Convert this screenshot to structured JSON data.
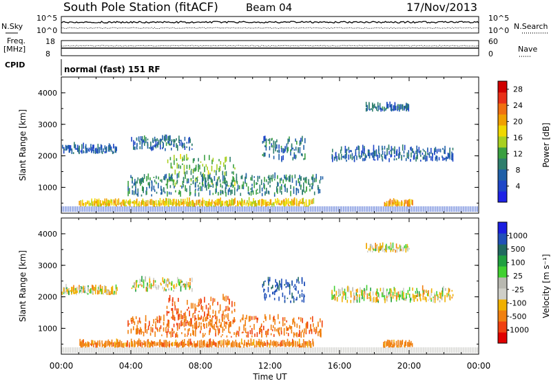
{
  "header": {
    "station": "South Pole Station (fitACF)",
    "beam": "Beam 04",
    "date": "17/Nov/2013"
  },
  "top_panels": {
    "nsky_label": "N.Sky",
    "nsky_ticks": [
      "10^5",
      "10^0"
    ],
    "nsearch_label": "N.Search",
    "nsearch_ticks": [
      "10^5",
      "10^0"
    ],
    "freq_label_1": "Freq.",
    "freq_label_2": "[MHz]",
    "freq_ticks": [
      "18",
      "8"
    ],
    "nave_label": "Nave",
    "nave_ticks": [
      "60",
      "0"
    ],
    "cpid_label": "CPID",
    "cpid_text": "normal (fast) 151 RF"
  },
  "colors": {
    "power_scale": [
      "#1e22e6",
      "#1e46c8",
      "#2060a8",
      "#2e7e6c",
      "#3aa040",
      "#a8d020",
      "#f0d800",
      "#f0a000",
      "#f07010",
      "#e83018",
      "#d00000"
    ],
    "velocity_scale": [
      "#1a1ee0",
      "#2050b8",
      "#206a60",
      "#20a040",
      "#40d030",
      "#b8b8b0",
      "#cfcfc8",
      "#f0b000",
      "#f08010",
      "#f04010",
      "#e00000"
    ]
  },
  "chart_data": [
    {
      "type": "heatmap",
      "name": "power",
      "ylabel": "Slant Range [km]",
      "xlabel": "Time UT",
      "ylim": [
        180,
        4500
      ],
      "yticks": [
        "1000",
        "2000",
        "3000",
        "4000"
      ],
      "xticks": [
        "00:00",
        "04:00",
        "08:00",
        "12:00",
        "16:00",
        "20:00",
        "00:00"
      ],
      "colorbar_label": "Power [dB]",
      "colorbar_ticks": [
        "4",
        "8",
        "12",
        "16",
        "20",
        "24",
        "28"
      ],
      "colorbar_range": [
        0,
        30
      ],
      "echo_regions": [
        {
          "t0": 0.0,
          "t1": 3.2,
          "r0": 2050,
          "r1": 2250,
          "level": 5
        },
        {
          "t0": 4.0,
          "t1": 7.5,
          "r0": 2150,
          "r1": 2500,
          "level": 6
        },
        {
          "t0": 6.0,
          "t1": 10.0,
          "r0": 1000,
          "r1": 1900,
          "level": 12
        },
        {
          "t0": 3.8,
          "t1": 15.0,
          "r0": 700,
          "r1": 1300,
          "level": 8
        },
        {
          "t0": 11.5,
          "t1": 14.0,
          "r0": 1800,
          "r1": 2500,
          "level": 7
        },
        {
          "t0": 15.5,
          "t1": 22.5,
          "r0": 1800,
          "r1": 2200,
          "level": 5
        },
        {
          "t0": 17.5,
          "t1": 20.0,
          "r0": 3400,
          "r1": 3550,
          "level": 6
        },
        {
          "t0": 1.0,
          "t1": 14.5,
          "r0": 380,
          "r1": 500,
          "level": 18
        },
        {
          "t0": 18.5,
          "t1": 20.2,
          "r0": 380,
          "r1": 480,
          "level": 20
        }
      ]
    },
    {
      "type": "heatmap",
      "name": "velocity",
      "ylabel": "Slant Range [km]",
      "xlabel": "Time UT",
      "ylim": [
        180,
        4500
      ],
      "yticks": [
        "1000",
        "2000",
        "3000",
        "4000"
      ],
      "xticks": [
        "00:00",
        "04:00",
        "08:00",
        "12:00",
        "16:00",
        "20:00",
        "00:00"
      ],
      "colorbar_label": "Velocity [m s⁻¹]",
      "colorbar_ticks": [
        "1000",
        "500",
        "100",
        "25",
        "-25",
        "-100",
        "-500",
        "-1000"
      ],
      "colorbar_range": [
        -1000,
        1000
      ],
      "echo_regions": [
        {
          "t0": 0.0,
          "t1": 3.2,
          "r0": 2050,
          "r1": 2250,
          "velocity": 0
        },
        {
          "t0": 4.0,
          "t1": 7.5,
          "r0": 2150,
          "r1": 2500,
          "velocity": 0
        },
        {
          "t0": 6.0,
          "t1": 10.0,
          "r0": 1000,
          "r1": 1900,
          "velocity": -300
        },
        {
          "t0": 3.8,
          "t1": 15.0,
          "r0": 700,
          "r1": 1300,
          "velocity": -250
        },
        {
          "t0": 11.5,
          "t1": 14.0,
          "r0": 1800,
          "r1": 2500,
          "velocity": 600
        },
        {
          "t0": 15.5,
          "t1": 22.5,
          "r0": 1800,
          "r1": 2200,
          "velocity": 0
        },
        {
          "t0": 17.5,
          "t1": 20.0,
          "r0": 3400,
          "r1": 3550,
          "velocity": 0
        },
        {
          "t0": 1.0,
          "t1": 14.5,
          "r0": 380,
          "r1": 500,
          "velocity": -200
        },
        {
          "t0": 18.5,
          "t1": 20.2,
          "r0": 380,
          "r1": 480,
          "velocity": -200
        }
      ]
    }
  ]
}
